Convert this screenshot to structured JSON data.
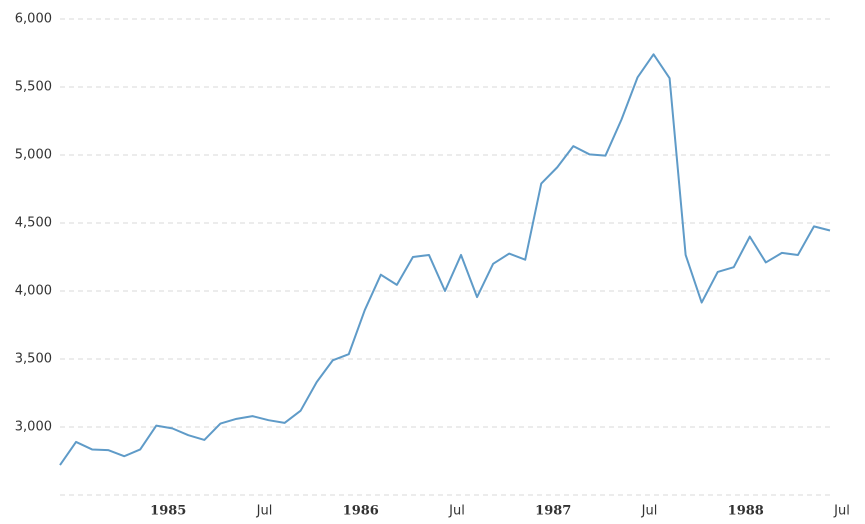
{
  "chart_data": {
    "type": "line",
    "x": [
      "1984-07",
      "1984-08",
      "1984-09",
      "1984-10",
      "1984-11",
      "1984-12",
      "1985-01",
      "1985-02",
      "1985-03",
      "1985-04",
      "1985-05",
      "1985-06",
      "1985-07",
      "1985-08",
      "1985-09",
      "1985-10",
      "1985-11",
      "1985-12",
      "1986-01",
      "1986-02",
      "1986-03",
      "1986-04",
      "1986-05",
      "1986-06",
      "1986-07",
      "1986-08",
      "1986-09",
      "1986-10",
      "1986-11",
      "1986-12",
      "1987-01",
      "1987-02",
      "1987-03",
      "1987-04",
      "1987-05",
      "1987-06",
      "1987-07",
      "1987-08",
      "1987-09",
      "1987-10",
      "1987-11",
      "1987-12",
      "1988-01",
      "1988-02",
      "1988-03",
      "1988-04",
      "1988-05",
      "1988-06",
      "1988-07"
    ],
    "series": [
      {
        "color": "#5f9bc8",
        "values": [
          2720,
          2890,
          2835,
          2830,
          2785,
          2835,
          3010,
          2990,
          2940,
          2905,
          3025,
          3060,
          3080,
          3050,
          3030,
          3120,
          3330,
          3490,
          3535,
          3860,
          4120,
          4045,
          4250,
          4265,
          4000,
          4265,
          3955,
          4200,
          4275,
          4230,
          4790,
          4910,
          5065,
          5005,
          4995,
          5260,
          5570,
          5740,
          5565,
          4265,
          3915,
          4140,
          4175,
          4400,
          4210,
          4280,
          4265,
          4475,
          4445
        ]
      }
    ],
    "xlim": [
      "1984-07",
      "1988-07"
    ],
    "xticks": [
      {
        "value": "1985-01",
        "label": "1985"
      },
      {
        "value": "1985-07",
        "label": "Jul"
      },
      {
        "value": "1986-01",
        "label": "1986"
      },
      {
        "value": "1986-07",
        "label": "Jul"
      },
      {
        "value": "1987-01",
        "label": "1987"
      },
      {
        "value": "1987-07",
        "label": "Jul"
      },
      {
        "value": "1988-01",
        "label": "1988"
      },
      {
        "value": "1988-07",
        "label": "Jul"
      }
    ],
    "ylim": [
      2500,
      6000
    ],
    "yticks": [
      {
        "value": 3000,
        "label": "3,000"
      },
      {
        "value": 3500,
        "label": "3,500"
      },
      {
        "value": 4000,
        "label": "4,000"
      },
      {
        "value": 4500,
        "label": "4,500"
      },
      {
        "value": 5000,
        "label": "5,000"
      },
      {
        "value": 5500,
        "label": "5,500"
      },
      {
        "value": 6000,
        "label": "6,000"
      }
    ],
    "grid": true
  }
}
